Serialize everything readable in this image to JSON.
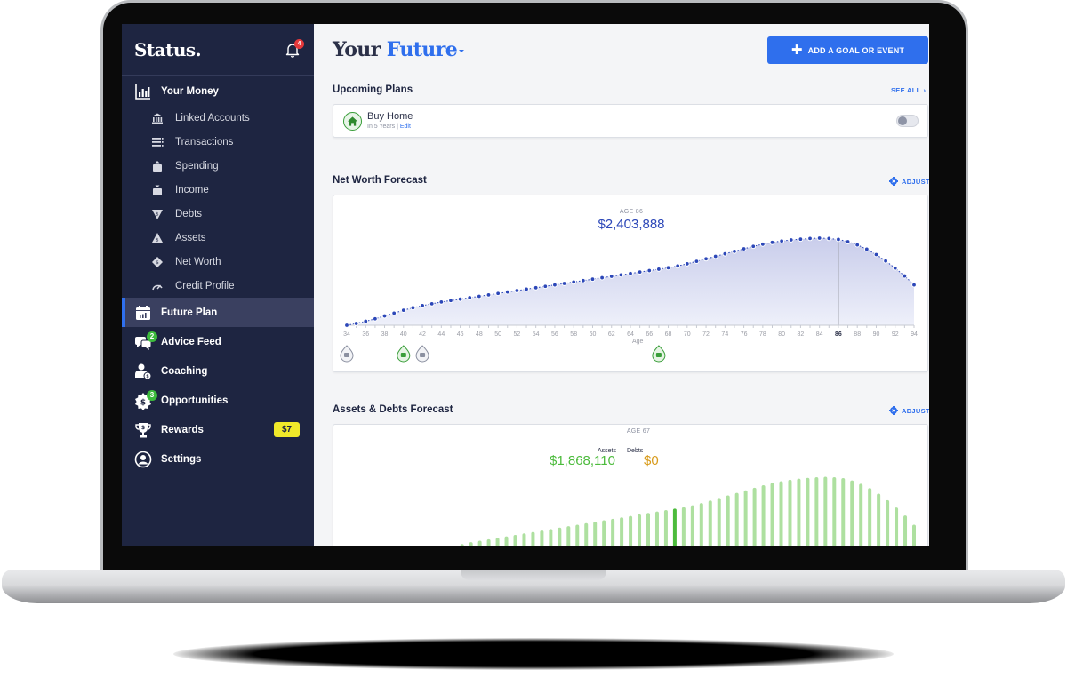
{
  "app": {
    "logo": "Status.",
    "notifications_count": "4"
  },
  "sidebar": {
    "sections": [
      {
        "label": "Your Money",
        "icon": "bar-chart-icon"
      },
      {
        "label": "Future Plan",
        "icon": "calendar-chart-icon",
        "active": true
      },
      {
        "label": "Advice Feed",
        "icon": "chat-bubbles-icon",
        "badge": "2"
      },
      {
        "label": "Coaching",
        "icon": "coach-icon"
      },
      {
        "label": "Opportunities",
        "icon": "dollar-badge-icon",
        "badge": "3"
      },
      {
        "label": "Rewards",
        "icon": "trophy-icon",
        "pill": "$7"
      },
      {
        "label": "Settings",
        "icon": "user-circle-icon"
      }
    ],
    "sub_items": [
      {
        "label": "Linked Accounts",
        "icon": "bank-icon"
      },
      {
        "label": "Transactions",
        "icon": "list-icon"
      },
      {
        "label": "Spending",
        "icon": "wallet-out-icon"
      },
      {
        "label": "Income",
        "icon": "wallet-in-icon"
      },
      {
        "label": "Debts",
        "icon": "debt-triangle-icon"
      },
      {
        "label": "Assets",
        "icon": "asset-triangle-icon"
      },
      {
        "label": "Net Worth",
        "icon": "net-worth-diamond-icon"
      },
      {
        "label": "Credit Profile",
        "icon": "gauge-icon"
      }
    ]
  },
  "header": {
    "title_prefix": "Your",
    "title_accent": "Future",
    "add_button": "ADD A GOAL OR EVENT"
  },
  "upcoming": {
    "title": "Upcoming Plans",
    "see_all": "SEE ALL",
    "plans": [
      {
        "name": "Buy Home",
        "timing": "In 5 Years",
        "separator": " | ",
        "edit": "Edit",
        "enabled": false
      }
    ]
  },
  "net_worth": {
    "title": "Net Worth Forecast",
    "adjust": "ADJUST",
    "tooltip_age": "AGE 86",
    "tooltip_value": "$2,403,888",
    "axis_label": "Age",
    "highlight_age": "86",
    "event_markers": [
      {
        "age": 34,
        "icon": "chart-event-icon",
        "color": "#8b90a0"
      },
      {
        "age": 40,
        "icon": "airplane-event-icon",
        "color": "#3a9e3a"
      },
      {
        "age": 42,
        "icon": "card-event-icon",
        "color": "#8b90a0"
      },
      {
        "age": 67,
        "icon": "retirement-event-icon",
        "color": "#3a9e3a"
      }
    ]
  },
  "assets_debts": {
    "title": "Assets & Debts Forecast",
    "adjust": "ADJUST",
    "tooltip_age": "AGE 67",
    "assets_label": "Assets",
    "assets_value": "$1,868,110",
    "debts_label": "Debts",
    "debts_value": "$0"
  },
  "colors": {
    "sidebar_bg": "#1e2541",
    "accent": "#2f6fed",
    "net_worth_line": "#2c47b8",
    "assets_green": "#4cbb3c",
    "assets_bar_light": "#aee0a0",
    "debts_gold": "#d89b1c",
    "reward_pill": "#f0e92a"
  },
  "chart_data": [
    {
      "type": "area",
      "title": "Net Worth Forecast",
      "xlabel": "Age",
      "ylabel": "",
      "x_ticks": [
        34,
        36,
        38,
        40,
        42,
        44,
        46,
        48,
        50,
        52,
        54,
        56,
        58,
        60,
        62,
        64,
        66,
        68,
        70,
        72,
        74,
        76,
        78,
        80,
        82,
        84,
        86,
        88,
        90,
        92,
        94
      ],
      "x": [
        34,
        35,
        36,
        37,
        38,
        39,
        40,
        41,
        42,
        43,
        44,
        45,
        46,
        47,
        48,
        49,
        50,
        51,
        52,
        53,
        54,
        55,
        56,
        57,
        58,
        59,
        60,
        61,
        62,
        63,
        64,
        65,
        66,
        67,
        68,
        69,
        70,
        71,
        72,
        73,
        74,
        75,
        76,
        77,
        78,
        79,
        80,
        81,
        82,
        83,
        84,
        85,
        86,
        87,
        88,
        89,
        90,
        91,
        92,
        93,
        94
      ],
      "values": [
        0,
        50000,
        110000,
        180000,
        260000,
        340000,
        420000,
        490000,
        550000,
        600000,
        650000,
        690000,
        730000,
        770000,
        810000,
        850000,
        890000,
        930000,
        970000,
        1010000,
        1050000,
        1090000,
        1130000,
        1170000,
        1210000,
        1250000,
        1290000,
        1330000,
        1370000,
        1410000,
        1450000,
        1490000,
        1530000,
        1570000,
        1610000,
        1660000,
        1720000,
        1790000,
        1860000,
        1930000,
        2000000,
        2070000,
        2140000,
        2210000,
        2270000,
        2320000,
        2360000,
        2390000,
        2410000,
        2430000,
        2440000,
        2430000,
        2403888,
        2340000,
        2250000,
        2130000,
        1980000,
        1800000,
        1600000,
        1380000,
        1130000
      ],
      "highlight": {
        "age": 86,
        "value": 2403888
      },
      "xlim": [
        34,
        94
      ]
    },
    {
      "type": "bar",
      "title": "Assets & Debts Forecast",
      "highlight": {
        "age": 67,
        "assets": 1868110,
        "debts": 0
      },
      "series": [
        {
          "name": "Assets",
          "note": "one bar per year; visible tops shown, bars clipped by screen edge"
        },
        {
          "name": "Debts",
          "values_at_highlight": 0
        }
      ]
    }
  ]
}
